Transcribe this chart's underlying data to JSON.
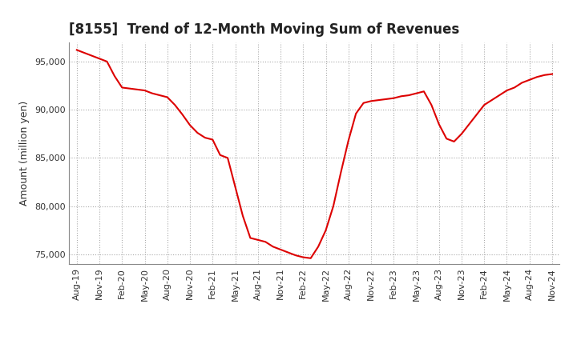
{
  "title": "[8155]  Trend of 12-Month Moving Sum of Revenues",
  "ylabel": "Amount (million yen)",
  "line_color": "#dd0000",
  "background_color": "#ffffff",
  "grid_color": "#aaaaaa",
  "x_tick_labels": [
    "Aug-19",
    "Nov-19",
    "Feb-20",
    "May-20",
    "Aug-20",
    "Nov-20",
    "Feb-21",
    "May-21",
    "Aug-21",
    "Nov-21",
    "Feb-22",
    "May-22",
    "Aug-22",
    "Nov-22",
    "Feb-23",
    "May-23",
    "Aug-23",
    "Nov-23",
    "Feb-24",
    "May-24",
    "Aug-24",
    "Nov-24"
  ],
  "x_tick_positions": [
    0,
    3,
    6,
    9,
    12,
    15,
    18,
    21,
    24,
    27,
    30,
    33,
    36,
    39,
    42,
    45,
    48,
    51,
    54,
    57,
    60,
    63
  ],
  "values": [
    96200,
    95900,
    95600,
    95300,
    95000,
    93500,
    92300,
    92200,
    92100,
    92000,
    91700,
    91500,
    91300,
    90500,
    89500,
    88400,
    87600,
    87100,
    86900,
    85300,
    85000,
    82000,
    79000,
    76700,
    76500,
    76300,
    75800,
    75500,
    75200,
    74900,
    74700,
    74600,
    75800,
    77500,
    80000,
    83500,
    86800,
    89600,
    90700,
    90900,
    91000,
    91100,
    91200,
    91400,
    91500,
    91700,
    91900,
    90500,
    88500,
    87000,
    86700,
    87500,
    88500,
    89500,
    90500,
    91000,
    91500,
    92000,
    92300,
    92800,
    93100,
    93400,
    93600,
    93700
  ],
  "ylim": [
    74000,
    97000
  ],
  "yticks": [
    75000,
    80000,
    85000,
    90000,
    95000
  ],
  "title_fontsize": 12,
  "ylabel_fontsize": 9,
  "tick_fontsize": 8
}
